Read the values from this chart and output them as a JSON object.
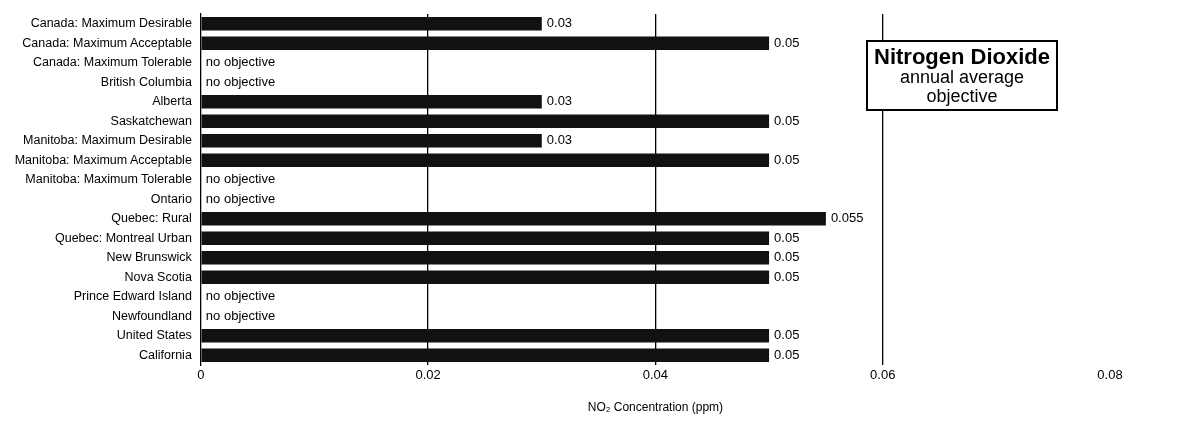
{
  "chart_data": {
    "type": "bar",
    "orientation": "horizontal",
    "title": "Nitrogen Dioxide",
    "subtitle": "annual average objective",
    "xlabel": "NO₂ Concentration (ppm)",
    "categories": [
      "Canada: Maximum Desirable",
      "Canada: Maximum Acceptable",
      "Canada: Maximum Tolerable",
      "British Columbia",
      "Alberta",
      "Saskatchewan",
      "Manitoba: Maximum Desirable",
      "Manitoba: Maximum Acceptable",
      "Manitoba: Maximum Tolerable",
      "Ontario",
      "Quebec: Rural",
      "Quebec: Montreal Urban",
      "New Brunswick",
      "Nova Scotia",
      "Prince Edward Island",
      "Newfoundland",
      "United States",
      "California"
    ],
    "values": [
      0.03,
      0.05,
      null,
      null,
      0.03,
      0.05,
      0.03,
      0.05,
      null,
      null,
      0.055,
      0.05,
      0.05,
      0.05,
      null,
      null,
      0.05,
      0.05
    ],
    "value_labels": [
      "0.03",
      "0.05",
      "no objective",
      "no objective",
      "0.03",
      "0.05",
      "0.03",
      "0.05",
      "no objective",
      "no objective",
      "0.055",
      "0.05",
      "0.05",
      "0.05",
      "no objective",
      "no objective",
      "0.05",
      "0.05"
    ],
    "color": "#111111",
    "xlim": [
      0,
      0.08
    ],
    "xticks": [
      0,
      0.02,
      0.04,
      0.06,
      0.08
    ],
    "grid": "x",
    "legend": false
  }
}
